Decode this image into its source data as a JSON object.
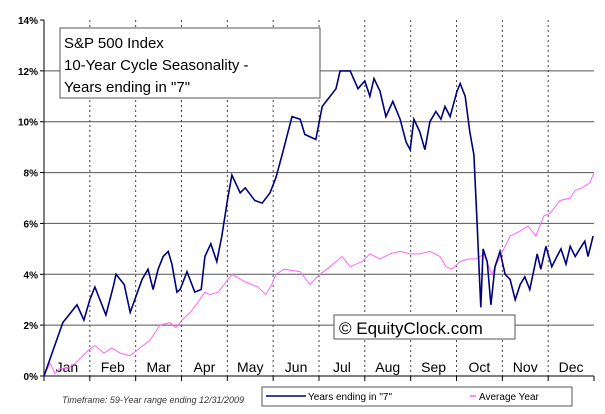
{
  "chart_data": {
    "type": "line",
    "title": [
      "S&P 500 Index",
      "10-Year Cycle Seasonality -",
      "Years ending in \"7\""
    ],
    "watermark": "© EquityClock.com",
    "footnote": "Timeframe: 59-Year range ending 12/31/2009",
    "xlabel": "",
    "ylabel": "",
    "ylim": [
      0,
      14
    ],
    "xlim": [
      0,
      12
    ],
    "yticks": [
      0,
      2,
      4,
      6,
      8,
      10,
      12,
      14
    ],
    "ytick_labels": [
      "0%",
      "2%",
      "4%",
      "6%",
      "8%",
      "10%",
      "12%",
      "14%"
    ],
    "categories": [
      "Jan",
      "Feb",
      "Mar",
      "Apr",
      "May",
      "Jun",
      "Jul",
      "Aug",
      "Sep",
      "Oct",
      "Nov",
      "Dec"
    ],
    "grid": true,
    "legend_position": "bottom-right",
    "series": [
      {
        "name": "Years ending in \"7\"",
        "color": "#000080",
        "x": [
          0,
          0.41,
          0.72,
          0.87,
          1.0,
          1.11,
          1.35,
          1.51,
          1.57,
          1.75,
          1.88,
          2.14,
          2.27,
          2.38,
          2.49,
          2.6,
          2.71,
          2.79,
          2.9,
          2.97,
          3.12,
          3.29,
          3.43,
          3.51,
          3.64,
          3.77,
          3.88,
          4.01,
          4.1,
          4.28,
          4.39,
          4.6,
          4.76,
          4.93,
          5.06,
          5.21,
          5.41,
          5.59,
          5.69,
          5.93,
          6.07,
          6.37,
          6.46,
          6.68,
          6.85,
          7.0,
          7.11,
          7.2,
          7.33,
          7.46,
          7.61,
          7.77,
          7.9,
          7.99,
          8.07,
          8.2,
          8.31,
          8.42,
          8.55,
          8.66,
          8.75,
          8.86,
          9.01,
          9.08,
          9.19,
          9.29,
          9.38,
          9.45,
          9.53,
          9.58,
          9.67,
          9.75,
          9.84,
          9.95,
          10.06,
          10.17,
          10.28,
          10.39,
          10.49,
          10.6,
          10.76,
          10.84,
          10.95,
          11.08,
          11.19,
          11.28,
          11.39,
          11.48,
          11.59,
          11.69,
          11.8,
          11.87,
          11.98
        ],
        "y": [
          0,
          2.1,
          2.8,
          2.2,
          3.0,
          3.5,
          2.4,
          3.5,
          4.0,
          3.6,
          2.5,
          3.8,
          4.2,
          3.4,
          4.2,
          4.7,
          4.9,
          4.4,
          3.3,
          3.4,
          4.1,
          3.3,
          3.4,
          4.7,
          5.2,
          4.5,
          5.5,
          7.0,
          7.9,
          7.2,
          7.4,
          6.9,
          6.8,
          7.2,
          7.8,
          8.8,
          10.2,
          10.1,
          9.5,
          9.3,
          10.6,
          11.3,
          12.0,
          12.0,
          11.3,
          11.6,
          11.0,
          11.7,
          11.2,
          10.2,
          10.8,
          10.1,
          9.2,
          8.9,
          10.1,
          9.6,
          8.9,
          10.0,
          10.4,
          10.1,
          10.6,
          10.2,
          11.2,
          11.5,
          11.0,
          9.6,
          8.7,
          6.0,
          2.7,
          5.0,
          4.5,
          2.8,
          4.3,
          4.9,
          4.0,
          3.8,
          3.0,
          3.6,
          3.9,
          3.4,
          4.8,
          4.2,
          5.1,
          4.3,
          4.7,
          5.0,
          4.4,
          5.1,
          4.7,
          5.0,
          5.3,
          4.7,
          5.5
        ]
      },
      {
        "name": "Average Year",
        "color": "#ff66ff",
        "x": [
          0,
          0.13,
          0.24,
          0.35,
          0.52,
          0.68,
          0.96,
          1.11,
          1.31,
          1.48,
          1.66,
          1.88,
          2.09,
          2.31,
          2.53,
          2.75,
          2.88,
          3.01,
          3.19,
          3.36,
          3.51,
          3.62,
          3.8,
          3.93,
          4.1,
          4.39,
          4.67,
          4.84,
          4.97,
          5.06,
          5.24,
          5.59,
          5.8,
          6.02,
          6.24,
          6.5,
          6.68,
          6.94,
          7.11,
          7.33,
          7.55,
          7.77,
          7.99,
          8.2,
          8.42,
          8.64,
          8.77,
          8.9,
          9.08,
          9.25,
          9.43,
          9.6,
          9.77,
          9.95,
          10.17,
          10.39,
          10.56,
          10.73,
          10.91,
          11.04,
          11.26,
          11.48,
          11.59,
          11.74,
          11.91,
          12.0
        ],
        "y": [
          0,
          0.5,
          0.1,
          0.3,
          0.3,
          0.5,
          1.0,
          1.2,
          0.9,
          1.1,
          0.9,
          0.8,
          1.1,
          1.4,
          2.0,
          2.1,
          1.9,
          2.2,
          2.5,
          2.9,
          3.3,
          3.2,
          3.3,
          3.6,
          4.0,
          3.7,
          3.5,
          3.2,
          3.6,
          4.0,
          4.2,
          4.1,
          3.6,
          4.0,
          4.3,
          4.7,
          4.3,
          4.5,
          4.8,
          4.6,
          4.8,
          4.9,
          4.8,
          4.8,
          4.9,
          4.7,
          4.3,
          4.2,
          4.5,
          4.6,
          4.6,
          4.8,
          4.0,
          4.7,
          5.5,
          5.7,
          5.9,
          5.5,
          6.3,
          6.4,
          6.9,
          7.0,
          7.3,
          7.4,
          7.6,
          8.0
        ]
      }
    ]
  }
}
